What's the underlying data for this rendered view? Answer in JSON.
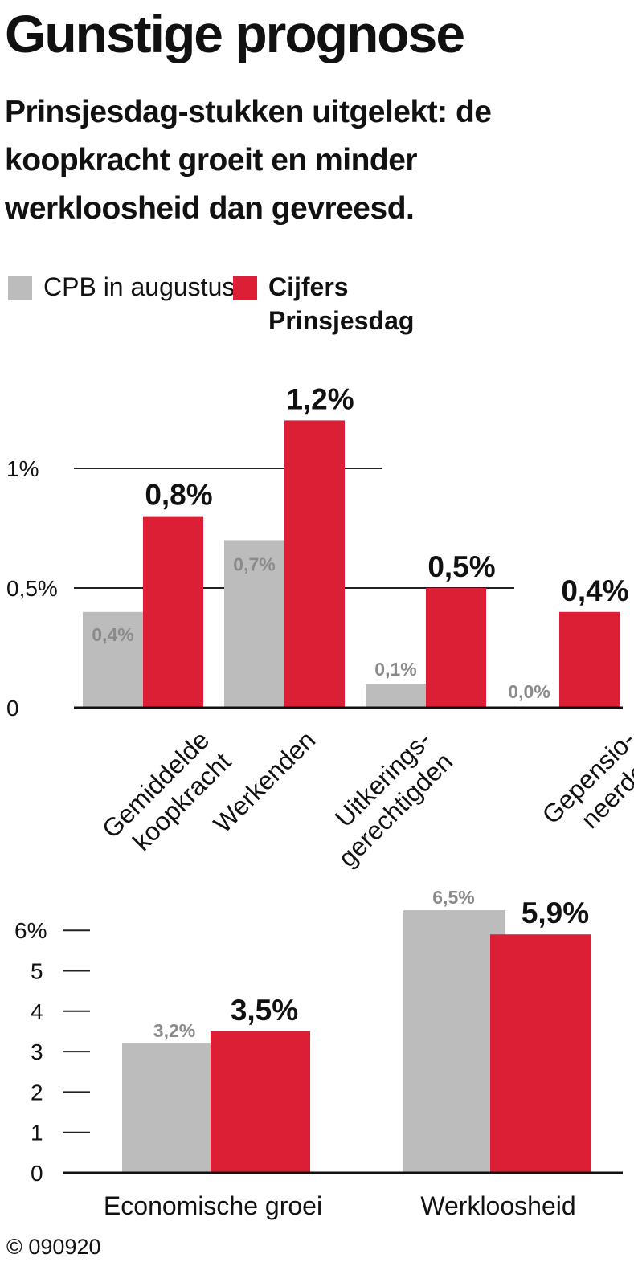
{
  "title": "Gunstige prognose",
  "subtitle": "Prinsjesdag-stukken uitgelekt: de koopkracht groeit en minder werkloosheid dan gevreesd.",
  "legend": [
    {
      "label": "CPB in augustus",
      "color": "#bcbcbc"
    },
    {
      "label": "Cijfers Prinsjesdag",
      "color": "#dc1f34"
    }
  ],
  "colors": {
    "cpb": "#bcbcbc",
    "prinsjesdag": "#dc1f34",
    "cpb_label": "#8a8a8a",
    "text": "#111111"
  },
  "copyright": "© 090920",
  "chart_data": [
    {
      "type": "bar",
      "categories": [
        [
          "Gemiddelde",
          "koopkracht"
        ],
        [
          "Werkenden"
        ],
        [
          "Uitkerings-",
          "gerechtigden"
        ],
        [
          "Gepensio-",
          "neerden"
        ]
      ],
      "series": [
        {
          "name": "CPB in augustus",
          "values": [
            0.4,
            0.7,
            0.1,
            0.0
          ],
          "labels": [
            "0,4%",
            "0,7%",
            "0,1%",
            "0,0%"
          ]
        },
        {
          "name": "Cijfers Prinsjesdag",
          "values": [
            0.8,
            1.2,
            0.5,
            0.4
          ],
          "labels": [
            "0,8%",
            "1,2%",
            "0,5%",
            "0,4%"
          ]
        }
      ],
      "yticks": [
        {
          "value": 0,
          "label": "0"
        },
        {
          "value": 0.5,
          "label": "0,5%"
        },
        {
          "value": 1,
          "label": "1%"
        }
      ],
      "ylim": [
        0,
        1.2
      ],
      "grid": true
    },
    {
      "type": "bar",
      "categories": [
        "Economische groei",
        "Werkloosheid"
      ],
      "series": [
        {
          "name": "CPB in augustus",
          "values": [
            3.2,
            6.5
          ],
          "labels": [
            "3,2%",
            "6,5%"
          ]
        },
        {
          "name": "Cijfers Prinsjesdag",
          "values": [
            3.5,
            5.9
          ],
          "labels": [
            "3,5%",
            "5,9%"
          ]
        }
      ],
      "yticks": [
        {
          "value": 0,
          "label": "0"
        },
        {
          "value": 1,
          "label": "1"
        },
        {
          "value": 2,
          "label": "2"
        },
        {
          "value": 3,
          "label": "3"
        },
        {
          "value": 4,
          "label": "4"
        },
        {
          "value": 5,
          "label": "5"
        },
        {
          "value": 6,
          "label": "6%"
        }
      ],
      "ylim": [
        0,
        6.5
      ],
      "grid": false
    }
  ]
}
